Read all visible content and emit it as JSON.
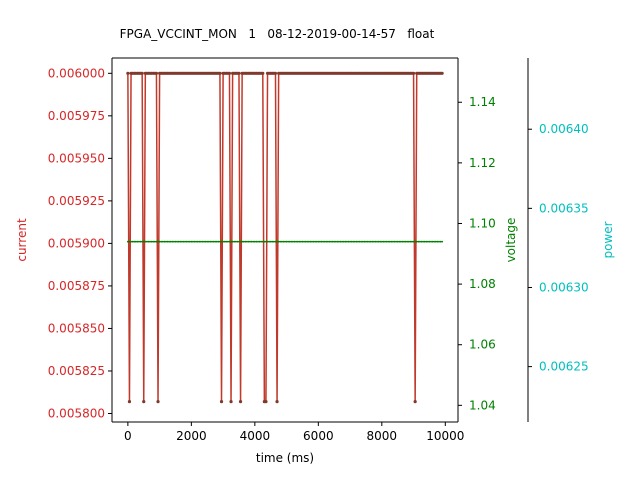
{
  "chart_data": {
    "type": "line",
    "title": "FPGA_VCCINT_MON   1   08-12-2019-00-14-57   float",
    "xlabel": "time (ms)",
    "xlim": [
      -500,
      10400
    ],
    "xticks": [
      0,
      2000,
      4000,
      6000,
      8000,
      10000
    ],
    "axes": {
      "current": {
        "label": "current",
        "color": "#d62728",
        "ylim": [
          0.005795,
          0.006009
        ],
        "ticks": [
          "0.005800",
          "0.005825",
          "0.005850",
          "0.005875",
          "0.005900",
          "0.005925",
          "0.005950",
          "0.005975",
          "0.006000"
        ]
      },
      "voltage": {
        "label": "voltage",
        "color": "#008000",
        "ylim": [
          1.0345,
          1.1546
        ],
        "ticks": [
          "1.04",
          "1.06",
          "1.08",
          "1.10",
          "1.12",
          "1.14"
        ]
      },
      "power": {
        "label": "power",
        "color": "#00bfbf",
        "ylim": [
          0.006215,
          0.006445
        ],
        "ticks": [
          "0.00625",
          "0.00630",
          "0.00635",
          "0.00640"
        ]
      }
    },
    "series": [
      {
        "name": "current",
        "axis": "current",
        "color": "#c0392b",
        "x_start": 0,
        "x_step": 50,
        "x_end": 9900,
        "high": 0.006,
        "low": 0.005807,
        "low_x": [
          50,
          500,
          950,
          2950,
          3250,
          3550,
          4300,
          4350,
          4700,
          9050
        ]
      },
      {
        "name": "voltage",
        "axis": "voltage",
        "color": "#008000",
        "x_start": 0,
        "x_step": 50,
        "x_end": 9900,
        "value": 1.094
      }
    ]
  }
}
